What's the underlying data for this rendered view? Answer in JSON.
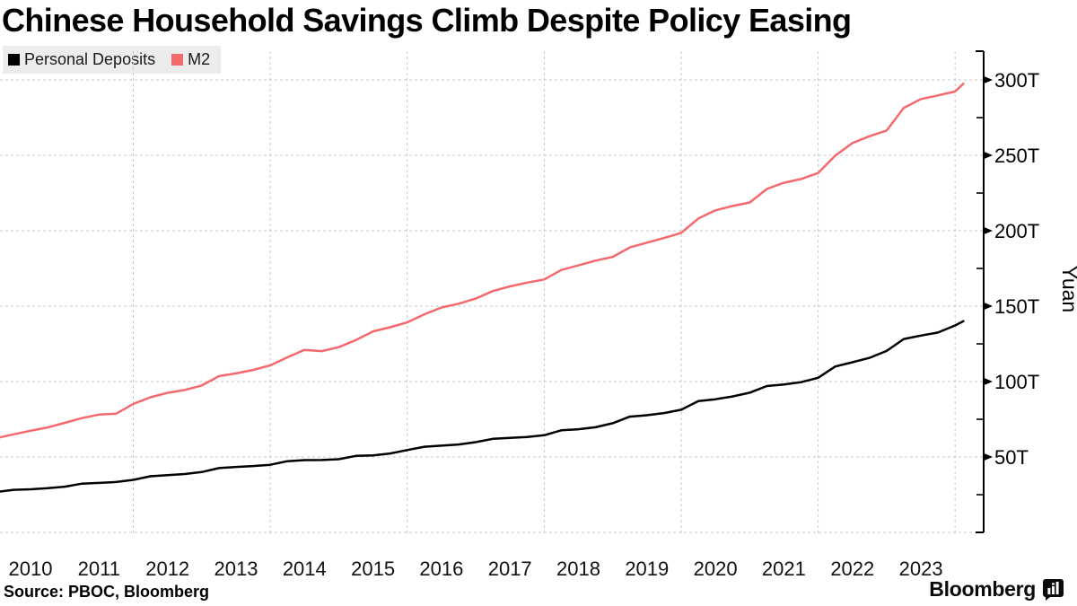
{
  "title": "Chinese Household Savings Climb Despite Policy Easing",
  "source": "Source: PBOC, Bloomberg",
  "branding": {
    "logo_text": "Bloomberg",
    "logo_icon": "bar-chart-bubble-icon"
  },
  "colors": {
    "personal_deposits_line": "#000000",
    "m2_line": "#f4696b",
    "legend_background": "#ececec",
    "gridline": "#c9c9c9",
    "background": "#ffffff"
  },
  "chart_data": {
    "type": "line",
    "title": "Chinese Household Savings Climb Despite Policy Easing",
    "xlabel": "",
    "ylabel": "Yuan",
    "unit": "trillion yuan (T)",
    "legend_position": "top-left",
    "grid": "dashed; horizontal every 50T, vertical every 2 years",
    "xlim": [
      2009.95,
      2024.45
    ],
    "ylim": [
      0,
      319
    ],
    "x_tick_labels": [
      "2010",
      "2011",
      "2012",
      "2013",
      "2014",
      "2015",
      "2016",
      "2017",
      "2018",
      "2019",
      "2020",
      "2021",
      "2022",
      "2023"
    ],
    "x_gridline_years": [
      2012,
      2014,
      2016,
      2018,
      2020,
      2022,
      2024
    ],
    "y_gridline_values": [
      0,
      50,
      100,
      150,
      200,
      250,
      300
    ],
    "y_minor_tick_values": [
      25,
      75,
      125,
      175,
      225,
      275
    ],
    "y_ticks": [
      {
        "value": 50,
        "label": "50T"
      },
      {
        "value": 100,
        "label": "100T"
      },
      {
        "value": 150,
        "label": "150T"
      },
      {
        "value": 200,
        "label": "200T"
      },
      {
        "value": 250,
        "label": "250T"
      },
      {
        "value": 300,
        "label": "300T"
      }
    ],
    "x": [
      2010,
      2010.25,
      2010.5,
      2010.75,
      2011,
      2011.25,
      2011.5,
      2011.75,
      2012,
      2012.25,
      2012.5,
      2012.75,
      2013,
      2013.25,
      2013.5,
      2013.75,
      2014,
      2014.25,
      2014.5,
      2014.75,
      2015,
      2015.25,
      2015.5,
      2015.75,
      2016,
      2016.25,
      2016.5,
      2016.75,
      2017,
      2017.25,
      2017.5,
      2017.75,
      2018,
      2018.25,
      2018.5,
      2018.75,
      2019,
      2019.25,
      2019.5,
      2019.75,
      2020,
      2020.25,
      2020.5,
      2020.75,
      2021,
      2021.25,
      2021.5,
      2021.75,
      2022,
      2022.25,
      2022.5,
      2022.75,
      2023,
      2023.25,
      2023.5,
      2023.75,
      2024,
      2024.12
    ],
    "series": [
      {
        "name": "Personal Deposits",
        "color": "#000000",
        "values": [
          26.8,
          28.2,
          28.6,
          29.3,
          30.3,
          32.3,
          32.8,
          33.4,
          34.8,
          37.2,
          38.0,
          38.7,
          40.0,
          42.6,
          43.4,
          44.0,
          44.8,
          47.2,
          47.9,
          48.0,
          48.5,
          50.7,
          51.1,
          52.3,
          54.6,
          56.8,
          57.5,
          58.3,
          59.8,
          62.0,
          62.6,
          63.2,
          64.4,
          67.7,
          68.4,
          69.7,
          72.4,
          76.7,
          77.7,
          79.1,
          81.3,
          87.0,
          88.3,
          90.1,
          92.6,
          97.0,
          98.1,
          99.6,
          102.5,
          110.0,
          112.8,
          115.7,
          120.3,
          128.2,
          130.5,
          132.5,
          137.2,
          140.0
        ]
      },
      {
        "name": "M2",
        "color": "#f4696b",
        "values": [
          62.5,
          65.0,
          67.4,
          69.6,
          72.6,
          75.8,
          78.1,
          78.7,
          85.2,
          89.6,
          92.5,
          94.4,
          97.4,
          103.6,
          105.4,
          107.7,
          110.7,
          116.1,
          121.0,
          120.2,
          122.8,
          127.5,
          133.3,
          136.0,
          139.2,
          144.6,
          149.1,
          151.6,
          155.0,
          160.0,
          163.1,
          165.6,
          167.7,
          174.0,
          177.0,
          180.2,
          182.7,
          188.9,
          192.1,
          195.2,
          198.6,
          208.1,
          213.5,
          216.4,
          218.7,
          227.7,
          231.8,
          234.3,
          238.3,
          249.8,
          258.1,
          262.7,
          266.4,
          281.5,
          287.3,
          289.7,
          292.3,
          297.5
        ]
      }
    ]
  }
}
